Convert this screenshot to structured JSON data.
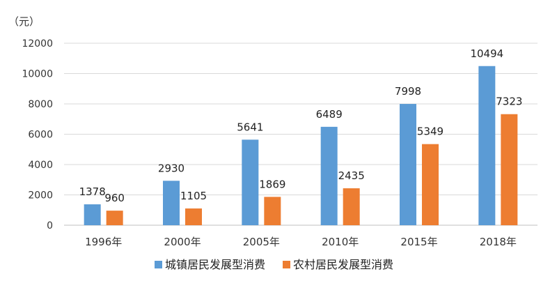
{
  "chart_data": {
    "type": "bar",
    "unit_label": "（元）",
    "categories": [
      "1996年",
      "2000年",
      "2005年",
      "2010年",
      "2015年",
      "2018年"
    ],
    "series": [
      {
        "name": "城镇居民发展型消费",
        "color": "#5b9bd5",
        "values": [
          1378,
          2930,
          5641,
          6489,
          7998,
          10494
        ]
      },
      {
        "name": "农村居民发展型消费",
        "color": "#ed7d31",
        "values": [
          960,
          1105,
          1869,
          2435,
          5349,
          7323
        ]
      }
    ],
    "ylim": [
      0,
      12000
    ],
    "yticks": [
      "0",
      "2000",
      "4000",
      "6000",
      "8000",
      "10000",
      "12000"
    ],
    "grid": true,
    "legend_position": "bottom"
  }
}
